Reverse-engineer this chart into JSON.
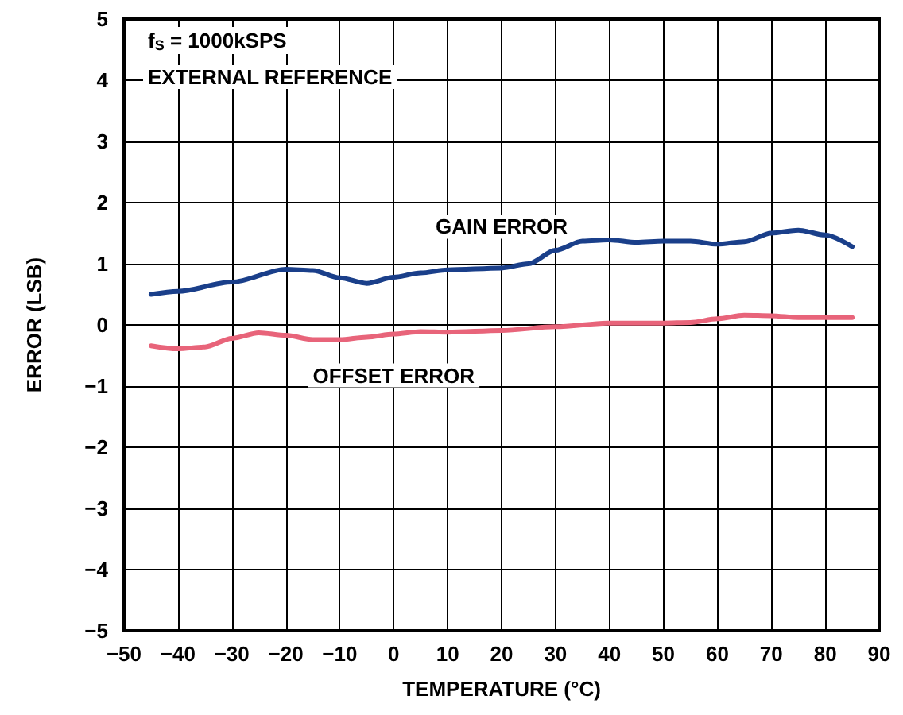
{
  "chart_data": {
    "type": "line",
    "xlabel": "TEMPERATURE (°C)",
    "ylabel": "ERROR (LSB)",
    "annotations": [
      "f$_{S}$ = 1000kSPS",
      "EXTERNAL REFERENCE"
    ],
    "series": [
      {
        "name": "GAIN ERROR",
        "color": "#1a3f8a",
        "x": [
          -45,
          -40,
          -30,
          -20,
          -15,
          -10,
          -5,
          0,
          5,
          10,
          20,
          25,
          30,
          35,
          40,
          45,
          50,
          55,
          60,
          65,
          70,
          75,
          80,
          85
        ],
        "values": [
          0.5,
          0.55,
          0.7,
          0.91,
          0.89,
          0.77,
          0.68,
          0.78,
          0.85,
          0.9,
          0.93,
          1.0,
          1.22,
          1.37,
          1.39,
          1.35,
          1.37,
          1.37,
          1.32,
          1.36,
          1.5,
          1.55,
          1.47,
          1.28
        ]
      },
      {
        "name": "OFFSET ERROR",
        "color": "#e8647a",
        "x": [
          -45,
          -40,
          -35,
          -30,
          -25,
          -20,
          -15,
          -10,
          -5,
          0,
          5,
          10,
          20,
          30,
          40,
          50,
          55,
          60,
          65,
          70,
          75,
          85
        ],
        "values": [
          -0.34,
          -0.39,
          -0.36,
          -0.22,
          -0.13,
          -0.17,
          -0.24,
          -0.24,
          -0.2,
          -0.15,
          -0.11,
          -0.12,
          -0.09,
          -0.03,
          0.03,
          0.03,
          0.04,
          0.1,
          0.16,
          0.15,
          0.12,
          0.12
        ]
      }
    ],
    "xlim": [
      -50,
      90
    ],
    "xticks": [
      -50,
      -40,
      -30,
      -20,
      -10,
      0,
      10,
      20,
      30,
      40,
      50,
      60,
      70,
      80,
      90
    ],
    "ylim": [
      -5,
      5
    ],
    "yticks": [
      -5,
      -4,
      -3,
      -2,
      -1,
      0,
      1,
      2,
      3,
      4,
      5
    ],
    "grid": true,
    "legend": false,
    "marker": "none",
    "line_style": "solid"
  }
}
